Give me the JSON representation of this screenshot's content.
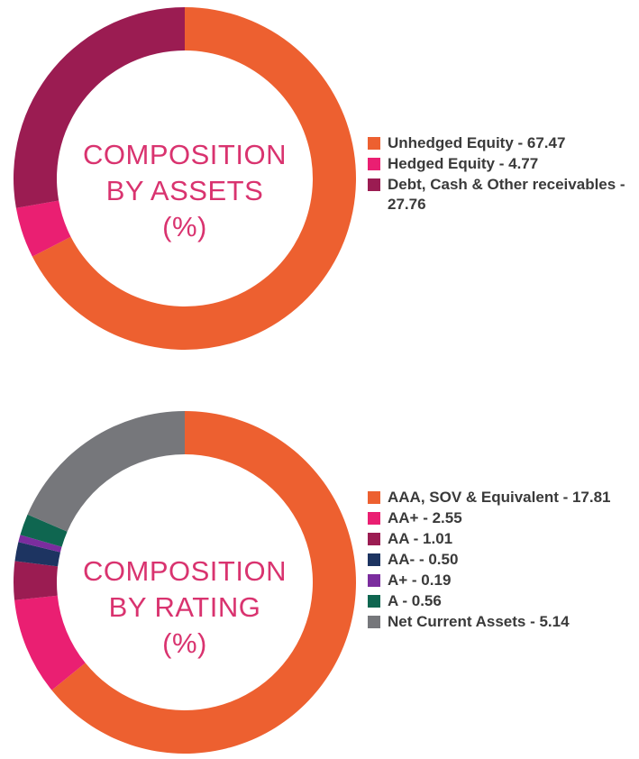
{
  "charts": [
    {
      "center_label": [
        "COMPOSITION",
        "BY ASSETS",
        "(%)"
      ],
      "legend": [
        {
          "label": "Unhedged Equity - 67.47",
          "color": "#ed6030"
        },
        {
          "label": "Hedged Equity - 4.77",
          "color": "#ea1f72"
        },
        {
          "label": "Debt, Cash & Other receivables - 27.76",
          "color": "#9b1c52"
        }
      ]
    },
    {
      "center_label": [
        "COMPOSITION",
        "BY RATING",
        "(%)"
      ],
      "legend": [
        {
          "label": "AAA, SOV & Equivalent - 17.81",
          "color": "#ed6030"
        },
        {
          "label": "AA+ - 2.55",
          "color": "#ea1f72"
        },
        {
          "label": "AA - 1.01",
          "color": "#9b1c52"
        },
        {
          "label": "AA- - 0.50",
          "color": "#1d3461"
        },
        {
          "label": "A+ - 0.19",
          "color": "#7b2d9e"
        },
        {
          "label": "A - 0.56",
          "color": "#0f6650"
        },
        {
          "label": "Net Current Assets - 5.14",
          "color": "#76777b"
        }
      ]
    }
  ],
  "chart_data": [
    {
      "type": "pie",
      "title": "COMPOSITION BY ASSETS (%)",
      "categories": [
        "Unhedged Equity",
        "Hedged Equity",
        "Debt, Cash & Other receivables"
      ],
      "values": [
        67.47,
        4.77,
        27.76
      ],
      "colors": [
        "#ed6030",
        "#ea1f72",
        "#9b1c52"
      ],
      "legend_position": "right"
    },
    {
      "type": "pie",
      "title": "COMPOSITION BY RATING (%)",
      "categories": [
        "AAA, SOV & Equivalent",
        "AA+",
        "AA",
        "AA-",
        "A+",
        "A",
        "Net Current Assets"
      ],
      "values": [
        17.81,
        2.55,
        1.01,
        0.5,
        0.19,
        0.56,
        5.14
      ],
      "colors": [
        "#ed6030",
        "#ea1f72",
        "#9b1c52",
        "#1d3461",
        "#7b2d9e",
        "#0f6650",
        "#76777b"
      ],
      "legend_position": "right"
    }
  ]
}
